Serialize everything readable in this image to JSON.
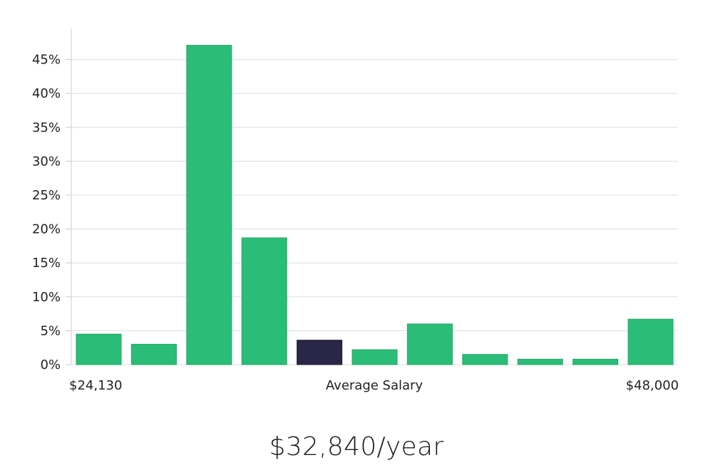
{
  "chart_data": {
    "type": "bar",
    "title": "",
    "xlabel": "",
    "ylabel": "",
    "ylim": [
      0,
      50
    ],
    "yticks": [
      0,
      5,
      10,
      15,
      20,
      25,
      30,
      35,
      40,
      45
    ],
    "ytick_format": "{v}%",
    "grid": true,
    "values": [
      4.5,
      3.0,
      47.1,
      18.7,
      3.6,
      2.2,
      6.0,
      1.5,
      0.8,
      0.8,
      6.7
    ],
    "highlight_index": 4,
    "colors": {
      "bar": "#2bbd77",
      "bar_edge": "#22a866",
      "highlight": "#2a2647",
      "grid": "#dddddd",
      "axis": "#cccccc"
    },
    "x_annotations": {
      "min_label": "$24,130",
      "center_label": "Average Salary",
      "max_label": "$48,000"
    }
  },
  "salary": {
    "value_text": "$32,840/year"
  }
}
